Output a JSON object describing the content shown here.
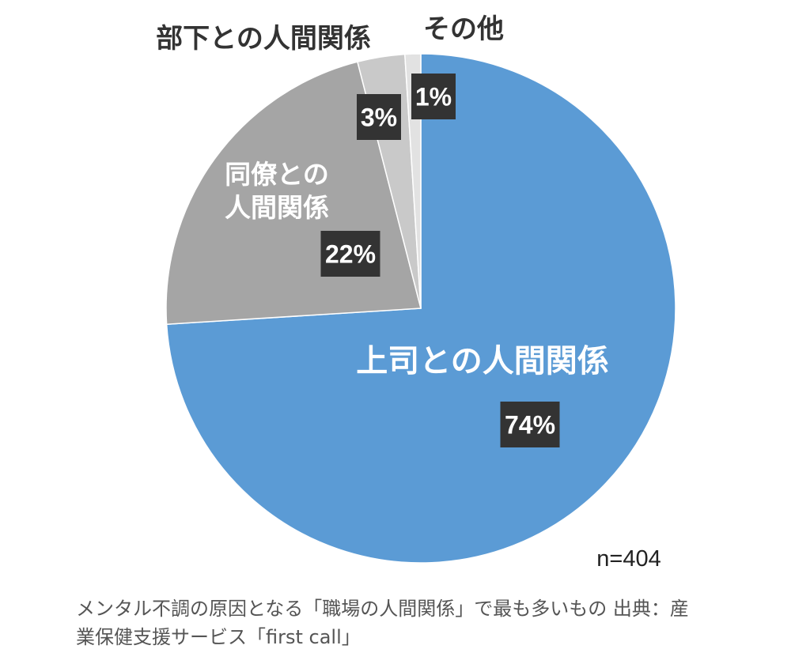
{
  "chart_data": {
    "type": "pie",
    "start_angle_deg": 0,
    "direction": "clockwise",
    "slices": [
      {
        "label": "上司との人間関係",
        "value": 74,
        "value_label": "74%",
        "color": "#5b9bd5"
      },
      {
        "label": "同僚との人間関係",
        "label_lines": [
          "同僚との",
          "人間関係"
        ],
        "value": 22,
        "value_label": "22%",
        "color": "#a5a5a5"
      },
      {
        "label": "部下との人間関係",
        "value": 3,
        "value_label": "3%",
        "color": "#c9c9c9"
      },
      {
        "label": "その他",
        "value": 1,
        "value_label": "1%",
        "color": "#e2e2e2"
      }
    ],
    "note": "n=404",
    "label_box_color": "#333333",
    "inside_label_color": "#ffffff",
    "outside_label_color": "#333333"
  },
  "caption": {
    "line1": "メンタル不調の原因となる「職場の人間関係」で最も多いもの 出典：産",
    "line2": "業保健支援サービス「first call」"
  }
}
